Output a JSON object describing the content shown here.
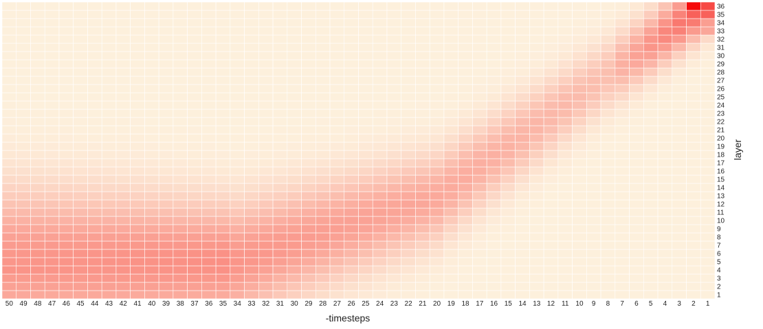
{
  "chart_data": {
    "type": "heatmap",
    "title": "",
    "xlabel": "-timesteps",
    "ylabel": "layer",
    "x_categories": [
      "50",
      "49",
      "48",
      "47",
      "46",
      "45",
      "44",
      "43",
      "42",
      "41",
      "40",
      "39",
      "38",
      "37",
      "36",
      "35",
      "34",
      "33",
      "32",
      "31",
      "30",
      "29",
      "28",
      "27",
      "26",
      "25",
      "24",
      "23",
      "22",
      "21",
      "20",
      "19",
      "18",
      "17",
      "16",
      "15",
      "14",
      "13",
      "12",
      "11",
      "10",
      "9",
      "8",
      "7",
      "6",
      "5",
      "4",
      "3",
      "2",
      "1"
    ],
    "y_categories": [
      "1",
      "2",
      "3",
      "4",
      "5",
      "6",
      "7",
      "8",
      "9",
      "10",
      "11",
      "12",
      "13",
      "14",
      "15",
      "16",
      "17",
      "18",
      "19",
      "20",
      "21",
      "22",
      "23",
      "24",
      "25",
      "26",
      "27",
      "28",
      "29",
      "30",
      "31",
      "32",
      "33",
      "34",
      "35",
      "36"
    ],
    "value_range": [
      0,
      1
    ],
    "values_description": "Intensity is highest for low layers at early timesteps (x=50..35) and shifts diagonally toward high layers at late timesteps, peaking at layer 36, timestep 2.",
    "colors": {
      "low": "#fdf0dc",
      "high": "#f50a0a",
      "grid": "#ffffff"
    },
    "grid": true,
    "legend": "none"
  }
}
